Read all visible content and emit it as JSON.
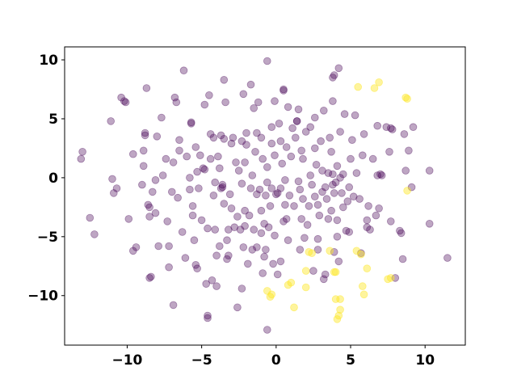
{
  "chart_data": {
    "type": "scatter",
    "title": "",
    "xlabel": "",
    "ylabel": "",
    "xlim": [
      -14.2,
      12.7
    ],
    "ylim": [
      -14.2,
      11.1
    ],
    "xticks": [
      -10,
      -5,
      0,
      5,
      10
    ],
    "xtick_labels": [
      "−10",
      "−5",
      "0",
      "5",
      "10"
    ],
    "yticks": [
      10,
      5,
      0,
      -5,
      -10
    ],
    "ytick_labels": [
      "10",
      "5",
      "0",
      "−5",
      "−10"
    ],
    "grid": false,
    "legend": "none",
    "series": [
      {
        "color": "#440154",
        "alpha": 0.35,
        "points": [
          [
            -13.0,
            2.2
          ],
          [
            -13.1,
            1.6
          ],
          [
            -12.5,
            -3.4
          ],
          [
            -12.2,
            -4.8
          ],
          [
            -11.1,
            4.8
          ],
          [
            -10.9,
            -1.3
          ],
          [
            -10.7,
            -0.9
          ],
          [
            -11.0,
            -0.1
          ],
          [
            -10.4,
            6.8
          ],
          [
            -10.2,
            6.5
          ],
          [
            -10.1,
            6.4
          ],
          [
            -9.9,
            -3.5
          ],
          [
            -9.6,
            2.0
          ],
          [
            -9.6,
            -6.2
          ],
          [
            -9.4,
            -5.9
          ],
          [
            -9.0,
            -0.6
          ],
          [
            -8.9,
            1.0
          ],
          [
            -8.9,
            2.3
          ],
          [
            -8.8,
            3.8
          ],
          [
            -8.8,
            3.6
          ],
          [
            -8.7,
            7.6
          ],
          [
            -8.6,
            -2.3
          ],
          [
            -8.5,
            -2.5
          ],
          [
            -8.5,
            -3.3
          ],
          [
            -8.5,
            -8.5
          ],
          [
            -8.4,
            -8.4
          ],
          [
            -8.3,
            -1.2
          ],
          [
            -8.1,
            -0.2
          ],
          [
            -8.1,
            -3.0
          ],
          [
            -8.0,
            3.5
          ],
          [
            -7.9,
            -5.8
          ],
          [
            -7.7,
            5.1
          ],
          [
            -7.6,
            0.2
          ],
          [
            -7.4,
            1.6
          ],
          [
            -7.3,
            -3.7
          ],
          [
            -7.2,
            -5.8
          ],
          [
            -7.2,
            -7.6
          ],
          [
            -7.0,
            -1.2
          ],
          [
            -6.9,
            -10.8
          ],
          [
            -6.9,
            1.3
          ],
          [
            -6.8,
            6.8
          ],
          [
            -6.7,
            6.4
          ],
          [
            -6.6,
            -1.7
          ],
          [
            -6.5,
            3.2
          ],
          [
            -6.5,
            2.3
          ],
          [
            -6.3,
            -4.6
          ],
          [
            -6.2,
            9.1
          ],
          [
            -6.1,
            -6.8
          ],
          [
            -6.0,
            1.8
          ],
          [
            -5.8,
            -1.0
          ],
          [
            -5.8,
            0.0
          ],
          [
            -5.7,
            4.7
          ],
          [
            -5.7,
            4.6
          ],
          [
            -5.6,
            -3.2
          ],
          [
            -5.6,
            -2.4
          ],
          [
            -5.5,
            -5.3
          ],
          [
            -5.4,
            -7.4
          ],
          [
            -5.4,
            2.6
          ],
          [
            -5.3,
            0.5
          ],
          [
            -5.3,
            -7.7
          ],
          [
            -5.2,
            -0.9
          ],
          [
            -5.1,
            1.9
          ],
          [
            -5.0,
            -3.6
          ],
          [
            -4.9,
            0.8
          ],
          [
            -4.8,
            0.7
          ],
          [
            -4.8,
            6.2
          ],
          [
            -4.7,
            -9.0
          ],
          [
            -4.6,
            -11.7
          ],
          [
            -4.6,
            -11.9
          ],
          [
            -4.6,
            -4.3
          ],
          [
            -4.5,
            7.0
          ],
          [
            -4.4,
            3.7
          ],
          [
            -4.4,
            1.6
          ],
          [
            -4.3,
            -8.7
          ],
          [
            -4.2,
            -1.5
          ],
          [
            -4.2,
            3.4
          ],
          [
            -4.1,
            -0.4
          ],
          [
            -4.1,
            -4.4
          ],
          [
            -4.0,
            -6.6
          ],
          [
            -4.0,
            -9.2
          ],
          [
            -3.9,
            1.8
          ],
          [
            -3.8,
            -5.8
          ],
          [
            -3.8,
            0.8
          ],
          [
            -3.7,
            -0.9
          ],
          [
            -3.7,
            3.6
          ],
          [
            -3.6,
            -0.6
          ],
          [
            -3.6,
            -0.8
          ],
          [
            -3.5,
            8.3
          ],
          [
            -3.5,
            -2.2
          ],
          [
            -3.4,
            6.4
          ],
          [
            -3.3,
            -5.3
          ],
          [
            -3.3,
            -6.9
          ],
          [
            -3.2,
            -6.6
          ],
          [
            -3.2,
            -4.4
          ],
          [
            -3.1,
            -1.4
          ],
          [
            -3.0,
            2.9
          ],
          [
            -3.0,
            -2.6
          ],
          [
            -2.9,
            3.4
          ],
          [
            -2.8,
            -4.2
          ],
          [
            -2.7,
            1.3
          ],
          [
            -2.6,
            -3.3
          ],
          [
            -2.6,
            -11.0
          ],
          [
            -2.5,
            0.6
          ],
          [
            -2.4,
            -4.4
          ],
          [
            -2.3,
            -9.4
          ],
          [
            -2.3,
            3.1
          ],
          [
            -2.3,
            -0.5
          ],
          [
            -2.2,
            7.1
          ],
          [
            -2.2,
            -5.9
          ],
          [
            -2.1,
            -4.1
          ],
          [
            -2.1,
            -2.8
          ],
          [
            -2.1,
            1.3
          ],
          [
            -2.0,
            3.8
          ],
          [
            -2.0,
            2.8
          ],
          [
            -1.9,
            -7.3
          ],
          [
            -1.8,
            -3.2
          ],
          [
            -1.7,
            7.9
          ],
          [
            -1.7,
            -0.9
          ],
          [
            -1.6,
            0.2
          ],
          [
            -1.6,
            -6.1
          ],
          [
            -1.5,
            5.9
          ],
          [
            -1.5,
            -4.4
          ],
          [
            -1.4,
            2.2
          ],
          [
            -1.3,
            3.8
          ],
          [
            -1.3,
            -1.4
          ],
          [
            -1.3,
            -5.9
          ],
          [
            -1.2,
            6.4
          ],
          [
            -1.1,
            -1.0
          ],
          [
            -1.0,
            3.4
          ],
          [
            -1.0,
            -4.7
          ],
          [
            -1.0,
            -2.8
          ],
          [
            -0.9,
            -8.1
          ],
          [
            -0.9,
            1.6
          ],
          [
            -0.8,
            -6.7
          ],
          [
            -0.8,
            -3.9
          ],
          [
            -0.7,
            -6.1
          ],
          [
            -0.7,
            -1.5
          ],
          [
            -0.6,
            -0.4
          ],
          [
            -0.6,
            9.9
          ],
          [
            -0.6,
            0.9
          ],
          [
            -0.6,
            -12.9
          ],
          [
            -0.5,
            -4.2
          ],
          [
            -0.4,
            -2.4
          ],
          [
            -0.3,
            4.3
          ],
          [
            -0.3,
            2.9
          ],
          [
            -0.3,
            -0.9
          ],
          [
            -0.2,
            -7.3
          ],
          [
            -0.1,
            6.5
          ],
          [
            -0.1,
            1.9
          ],
          [
            -0.1,
            -4.9
          ],
          [
            0.0,
            -1.4
          ],
          [
            0.1,
            -1.3
          ],
          [
            0.1,
            -8.2
          ],
          [
            0.2,
            4.6
          ],
          [
            0.3,
            -7.1
          ],
          [
            0.3,
            -0.9
          ],
          [
            0.3,
            3.1
          ],
          [
            0.4,
            1.2
          ],
          [
            0.5,
            7.4
          ],
          [
            0.5,
            7.5
          ],
          [
            0.5,
            -3.7
          ],
          [
            0.6,
            -0.2
          ],
          [
            0.6,
            -2.3
          ],
          [
            0.7,
            -3.5
          ],
          [
            0.7,
            2.6
          ],
          [
            0.8,
            6.0
          ],
          [
            0.8,
            -5.3
          ],
          [
            0.9,
            -1.5
          ],
          [
            1.0,
            1.8
          ],
          [
            1.1,
            4.2
          ],
          [
            1.2,
            -2.4
          ],
          [
            1.3,
            3.4
          ],
          [
            1.4,
            4.8
          ],
          [
            1.4,
            4.8
          ],
          [
            1.5,
            -0.3
          ],
          [
            1.5,
            5.8
          ],
          [
            1.6,
            -1.0
          ],
          [
            1.6,
            -6.1
          ],
          [
            1.7,
            -3.5
          ],
          [
            1.7,
            2.3
          ],
          [
            1.8,
            -1.8
          ],
          [
            1.8,
            1.6
          ],
          [
            1.9,
            -5.1
          ],
          [
            2.0,
            3.9
          ],
          [
            2.1,
            -4.0
          ],
          [
            2.2,
            -2.4
          ],
          [
            2.3,
            0.2
          ],
          [
            2.3,
            4.3
          ],
          [
            2.4,
            -0.6
          ],
          [
            2.5,
            -7.9
          ],
          [
            2.6,
            2.5
          ],
          [
            2.6,
            -1.6
          ],
          [
            2.6,
            5.1
          ],
          [
            2.7,
            1.1
          ],
          [
            2.8,
            -6.1
          ],
          [
            2.8,
            -2.3
          ],
          [
            2.8,
            -5.2
          ],
          [
            2.9,
            -3.2
          ],
          [
            3.0,
            3.1
          ],
          [
            3.1,
            0.6
          ],
          [
            3.1,
            -1.2
          ],
          [
            3.2,
            5.7
          ],
          [
            3.2,
            -8.6
          ],
          [
            3.3,
            -8.2
          ],
          [
            3.3,
            -0.8
          ],
          [
            3.4,
            -1.8
          ],
          [
            3.5,
            -3.5
          ],
          [
            3.5,
            0.4
          ],
          [
            3.6,
            3.4
          ],
          [
            3.7,
            -2.8
          ],
          [
            3.7,
            2.2
          ],
          [
            3.8,
            0.3
          ],
          [
            3.8,
            -0.6
          ],
          [
            3.8,
            6.5
          ],
          [
            3.8,
            8.5
          ],
          [
            3.9,
            8.7
          ],
          [
            3.9,
            -1.3
          ],
          [
            3.9,
            -6.3
          ],
          [
            4.0,
            -0.4
          ],
          [
            4.1,
            -5.0
          ],
          [
            4.1,
            -3.6
          ],
          [
            4.1,
            1.0
          ],
          [
            4.2,
            9.3
          ],
          [
            4.2,
            -7.1
          ],
          [
            4.3,
            0.0
          ],
          [
            4.3,
            3.9
          ],
          [
            4.4,
            -1.3
          ],
          [
            4.5,
            -2.5
          ],
          [
            4.5,
            0.3
          ],
          [
            4.6,
            5.4
          ],
          [
            4.7,
            -4.5
          ],
          [
            4.8,
            -2.0
          ],
          [
            4.9,
            -4.6
          ],
          [
            4.9,
            -0.8
          ],
          [
            5.0,
            1.6
          ],
          [
            5.1,
            3.2
          ],
          [
            5.2,
            -1.6
          ],
          [
            5.3,
            5.3
          ],
          [
            5.4,
            0.4
          ],
          [
            5.6,
            -1.8
          ],
          [
            5.7,
            -6.4
          ],
          [
            5.8,
            1.9
          ],
          [
            5.9,
            3.7
          ],
          [
            6.1,
            -3.6
          ],
          [
            6.1,
            -4.2
          ],
          [
            6.2,
            -2.4
          ],
          [
            6.3,
            -4.4
          ],
          [
            6.5,
            1.6
          ],
          [
            6.7,
            -3.2
          ],
          [
            6.8,
            4.4
          ],
          [
            6.8,
            0.2
          ],
          [
            6.9,
            -2.6
          ],
          [
            7.0,
            0.3
          ],
          [
            7.1,
            0.2
          ],
          [
            7.4,
            4.3
          ],
          [
            7.6,
            2.2
          ],
          [
            7.7,
            -3.7
          ],
          [
            7.7,
            4.2
          ],
          [
            7.8,
            4.1
          ],
          [
            8.0,
            -8.5
          ],
          [
            8.3,
            -4.5
          ],
          [
            8.4,
            -4.7
          ],
          [
            8.5,
            -6.9
          ],
          [
            8.6,
            3.7
          ],
          [
            8.7,
            0.6
          ],
          [
            8.9,
            2.3
          ],
          [
            9.1,
            -0.8
          ],
          [
            9.2,
            4.3
          ],
          [
            10.3,
            0.6
          ],
          [
            10.3,
            -3.9
          ],
          [
            11.5,
            -6.8
          ],
          [
            -3.5,
            3.3
          ]
        ]
      },
      {
        "color": "#fde725",
        "alpha": 0.45,
        "points": [
          [
            -0.6,
            -9.6
          ],
          [
            -0.4,
            -10.1
          ],
          [
            -0.3,
            -9.9
          ],
          [
            0.8,
            -9.1
          ],
          [
            1.0,
            -8.9
          ],
          [
            1.2,
            -11.0
          ],
          [
            2.0,
            -9.3
          ],
          [
            2.0,
            -7.9
          ],
          [
            2.2,
            -6.3
          ],
          [
            2.4,
            -6.4
          ],
          [
            3.6,
            -6.2
          ],
          [
            3.9,
            -8.0
          ],
          [
            4.0,
            -10.3
          ],
          [
            4.0,
            -8.0
          ],
          [
            4.1,
            -12.0
          ],
          [
            4.2,
            -11.7
          ],
          [
            4.3,
            -10.3
          ],
          [
            4.3,
            -11.2
          ],
          [
            5.4,
            -6.2
          ],
          [
            5.5,
            7.7
          ],
          [
            5.7,
            -6.5
          ],
          [
            5.8,
            -9.2
          ],
          [
            5.9,
            -9.9
          ],
          [
            6.1,
            -7.7
          ],
          [
            6.6,
            7.6
          ],
          [
            6.9,
            8.1
          ],
          [
            7.5,
            -8.6
          ],
          [
            7.7,
            -8.5
          ],
          [
            8.7,
            6.8
          ],
          [
            8.8,
            6.7
          ],
          [
            8.8,
            -1.1
          ]
        ]
      }
    ]
  }
}
